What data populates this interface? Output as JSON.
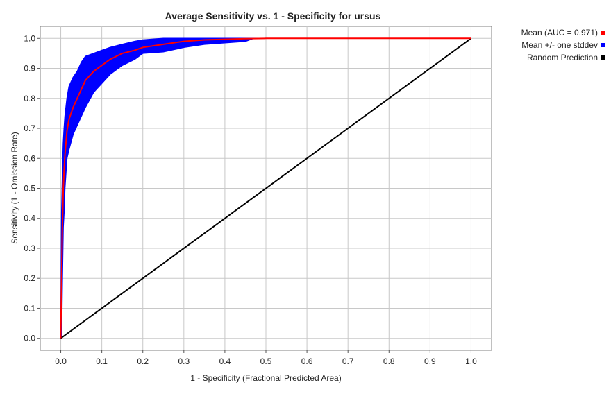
{
  "chart_data": {
    "type": "line",
    "title": "Average Sensitivity vs. 1 - Specificity for ursus",
    "xlabel": "1 - Specificity (Fractional Predicted Area)",
    "ylabel": "Sensitivity (1 - Omission Rate)",
    "xlim": [
      -0.05,
      1.05
    ],
    "ylim": [
      -0.04,
      1.04
    ],
    "xticks": [
      "0.0",
      "0.1",
      "0.2",
      "0.3",
      "0.4",
      "0.5",
      "0.6",
      "0.7",
      "0.8",
      "0.9",
      "1.0"
    ],
    "yticks": [
      "0.0",
      "0.1",
      "0.2",
      "0.3",
      "0.4",
      "0.5",
      "0.6",
      "0.7",
      "0.8",
      "0.9",
      "1.0"
    ],
    "grid": true,
    "legend_position": "right",
    "series": [
      {
        "name": "Mean (AUC = 0.971)",
        "color": "#ff0000",
        "x": [
          0,
          0.002,
          0.004,
          0.006,
          0.008,
          0.01,
          0.015,
          0.02,
          0.03,
          0.04,
          0.05,
          0.06,
          0.08,
          0.1,
          0.12,
          0.15,
          0.18,
          0.2,
          0.25,
          0.3,
          0.35,
          0.4,
          0.45,
          0.5,
          0.6,
          0.7,
          0.8,
          0.9,
          1.0
        ],
        "y": [
          0,
          0.2,
          0.38,
          0.5,
          0.56,
          0.61,
          0.69,
          0.73,
          0.77,
          0.8,
          0.83,
          0.86,
          0.89,
          0.91,
          0.93,
          0.95,
          0.96,
          0.97,
          0.98,
          0.99,
          0.995,
          0.997,
          0.999,
          1.0,
          1.0,
          1.0,
          1.0,
          1.0,
          1.0
        ]
      },
      {
        "name": "Mean +/- one stddev",
        "color": "#0000ff",
        "band": true,
        "x": [
          0,
          0.002,
          0.004,
          0.006,
          0.008,
          0.01,
          0.015,
          0.02,
          0.03,
          0.04,
          0.05,
          0.06,
          0.08,
          0.1,
          0.12,
          0.15,
          0.18,
          0.2,
          0.25,
          0.3,
          0.35,
          0.4,
          0.45,
          0.47,
          0.5,
          0.6,
          0.7,
          0.8,
          0.9,
          1.0
        ],
        "upper": [
          0,
          0.42,
          0.55,
          0.65,
          0.7,
          0.74,
          0.8,
          0.84,
          0.87,
          0.89,
          0.92,
          0.94,
          0.95,
          0.96,
          0.97,
          0.98,
          0.99,
          0.995,
          1.0,
          1.0,
          1.0,
          1.0,
          1.0,
          1.0,
          1.0,
          1.0,
          1.0,
          1.0,
          1.0,
          1.0
        ],
        "lower": [
          0,
          0.0,
          0.2,
          0.37,
          0.42,
          0.5,
          0.6,
          0.63,
          0.68,
          0.71,
          0.74,
          0.77,
          0.82,
          0.85,
          0.88,
          0.91,
          0.93,
          0.95,
          0.955,
          0.97,
          0.98,
          0.985,
          0.99,
          1.0,
          1.0,
          1.0,
          1.0,
          1.0,
          1.0,
          1.0
        ]
      },
      {
        "name": "Random Prediction",
        "color": "#000000",
        "x": [
          0,
          1
        ],
        "y": [
          0,
          1
        ]
      }
    ]
  }
}
